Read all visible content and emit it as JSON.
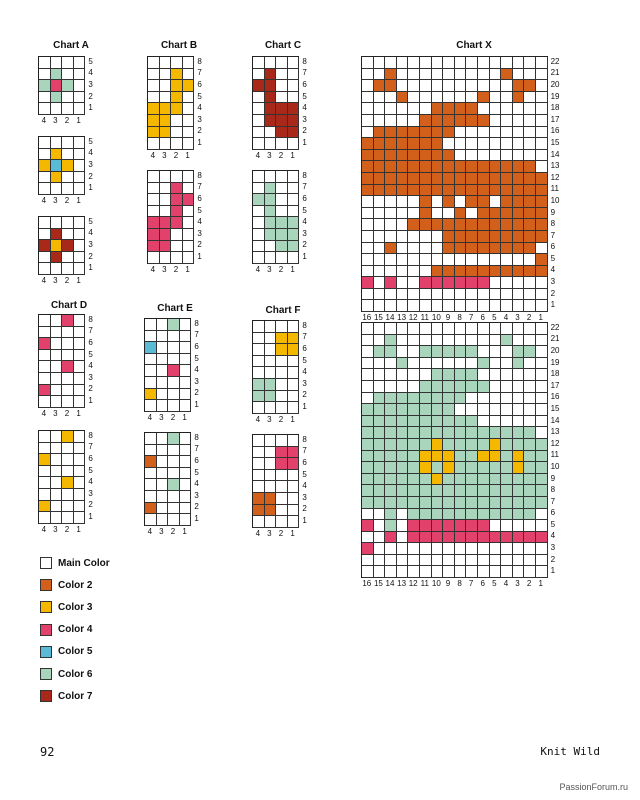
{
  "colors": {
    "1": "#ffffff",
    "2": "#d2601a",
    "3": "#f5b800",
    "4": "#e2416b",
    "5": "#5bbad5",
    "6": "#a8d5bc",
    "7": "#a8281a"
  },
  "legend": [
    {
      "id": "1",
      "label": "Main Color"
    },
    {
      "id": "2",
      "label": "Color 2"
    },
    {
      "id": "3",
      "label": "Color 3"
    },
    {
      "id": "4",
      "label": "Color 4"
    },
    {
      "id": "5",
      "label": "Color 5"
    },
    {
      "id": "6",
      "label": "Color 6"
    },
    {
      "id": "7",
      "label": "Color 7"
    }
  ],
  "titles": {
    "a": "Chart A",
    "b": "Chart B",
    "c": "Chart C",
    "d": "Chart D",
    "e": "Chart E",
    "f": "Chart F",
    "x": "Chart X"
  },
  "charts": [
    {
      "key": "a1",
      "cols": 4,
      "rows": [
        "1111",
        "1611",
        "6461",
        "1611",
        "1111"
      ]
    },
    {
      "key": "a2",
      "cols": 4,
      "rows": [
        "1111",
        "1311",
        "3531",
        "1311",
        "1111"
      ]
    },
    {
      "key": "a3",
      "cols": 4,
      "rows": [
        "1111",
        "1711",
        "7371",
        "1711",
        "1111"
      ]
    },
    {
      "key": "b1",
      "cols": 4,
      "rows": [
        "1111",
        "1131",
        "1133",
        "1131",
        "3331",
        "3311",
        "3311",
        "1111"
      ]
    },
    {
      "key": "b2",
      "cols": 4,
      "rows": [
        "1111",
        "1141",
        "1144",
        "1141",
        "4441",
        "4411",
        "4411",
        "1111"
      ]
    },
    {
      "key": "c1",
      "cols": 4,
      "rows": [
        "1111",
        "1711",
        "7711",
        "1711",
        "1777",
        "1777",
        "1177",
        "1111"
      ]
    },
    {
      "key": "c2",
      "cols": 4,
      "rows": [
        "1111",
        "1611",
        "6611",
        "1611",
        "1666",
        "1666",
        "1166",
        "1111"
      ]
    },
    {
      "key": "d1",
      "cols": 4,
      "rows": [
        "1141",
        "1111",
        "4111",
        "1111",
        "1141",
        "1111",
        "4111",
        "1111"
      ]
    },
    {
      "key": "d2",
      "cols": 4,
      "rows": [
        "1131",
        "1111",
        "3111",
        "1111",
        "1131",
        "1111",
        "3111",
        "1111"
      ]
    },
    {
      "key": "e1",
      "cols": 4,
      "rows": [
        "1161",
        "1111",
        "5111",
        "1111",
        "1141",
        "1111",
        "3111",
        "1111"
      ]
    },
    {
      "key": "e2",
      "cols": 4,
      "rows": [
        "1161",
        "1111",
        "2111",
        "1111",
        "1161",
        "1111",
        "2111",
        "1111"
      ]
    },
    {
      "key": "f1",
      "cols": 4,
      "rows": [
        "1111",
        "1133",
        "1133",
        "1111",
        "1111",
        "6611",
        "6611",
        "1111"
      ]
    },
    {
      "key": "f2",
      "cols": 4,
      "rows": [
        "1111",
        "1144",
        "1144",
        "1111",
        "1111",
        "2211",
        "2211",
        "1111"
      ]
    },
    {
      "key": "x1",
      "cols": 16,
      "rows": [
        "1111111111111111",
        "1121111111112111",
        "1221111111111221",
        "1112111111211211",
        "1111112222111111",
        "1111122222211111",
        "1222222211111111",
        "2222222111111111",
        "2222222211111111",
        "2222222222222221",
        "2222222222222222",
        "2222222222222222",
        "1111121212212222",
        "1111121121222222",
        "1111222222222222",
        "1111111222222222",
        "1121111222222221",
        "1111111111111112",
        "1111112222222222",
        "4141144444411111",
        "1111111111111111",
        "1111111111111111"
      ]
    },
    {
      "key": "x2",
      "cols": 16,
      "rows": [
        "1111111111111111",
        "1161111111116111",
        "1661166666111661",
        "1116111111611611",
        "1111116666111111",
        "1111166666611111",
        "1666666661111111",
        "6666666611111111",
        "6666666666111111",
        "6666666666666661",
        "6666663666636666",
        "6666633366336366",
        "6666636366666366",
        "6666663666666666",
        "6666666666666666",
        "6666666666666666",
        "1161666666666661",
        "4161444444411111",
        "1141444444444444",
        "4111111111111111",
        "1111111111111111",
        "1111111111111111"
      ]
    }
  ],
  "page_number": "92",
  "book_title": "Knit Wild",
  "watermark": "PassionForum.ru"
}
